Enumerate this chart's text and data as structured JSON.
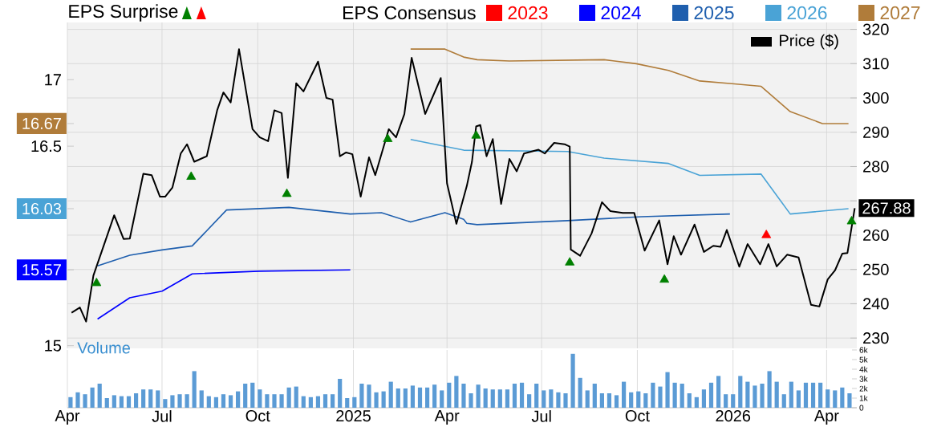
{
  "chart_data": [
    {
      "type": "line",
      "annotations": [
        "EPS Surprise"
      ],
      "legend_title": "EPS Consensus",
      "legend": "top",
      "grid": true,
      "tick_labels": "y",
      "xlim": [
        "2024-04-01",
        "2026-04-30"
      ],
      "xticks": [
        {
          "value": "2024-04-01",
          "label": null
        },
        {
          "value": "2024-07-01",
          "label": null
        },
        {
          "value": "2024-10-01",
          "label": null
        },
        {
          "value": "2025-01-01",
          "label": null
        },
        {
          "value": "2025-04-01",
          "label": null
        },
        {
          "value": "2025-07-01",
          "label": null
        },
        {
          "value": "2025-10-01",
          "label": null
        },
        {
          "value": "2026-01-01",
          "label": null
        },
        {
          "value": "2026-04-01",
          "label": null
        }
      ],
      "ylim": [
        14.98,
        17.43
      ],
      "yticks": [
        15,
        15.57,
        16.03,
        16.5,
        16.67,
        17
      ],
      "y2lim": [
        227,
        322
      ],
      "y2ticks": [
        230,
        240,
        250,
        260,
        {
          "value": 270,
          "label": null
        },
        280,
        290,
        300,
        310,
        320
      ],
      "series": [
        {
          "name": "2023",
          "color": "#ff0000",
          "type": "line",
          "axis": "y"
        },
        {
          "name": "2024",
          "color": "#0000ff",
          "type": "line",
          "axis": "y",
          "x": [
            "2024-04-30",
            "2024-05-31",
            "2024-07-01",
            "2024-07-30",
            "2024-10-02",
            "2024-12-29"
          ],
          "values": [
            15.2,
            15.36,
            15.41,
            15.54,
            15.56,
            15.57
          ]
        },
        {
          "name": "2025",
          "color": "#1f5fae",
          "type": "line",
          "axis": "y",
          "x": [
            "2024-04-30",
            "2024-05-31",
            "2024-07-01",
            "2024-07-30",
            "2024-09-01",
            "2024-10-31",
            "2024-12-29",
            "2025-01-28",
            "2025-02-25",
            "2025-03-30",
            "2025-04-17",
            "2025-04-20",
            "2025-04-30",
            "2025-07-26",
            "2025-10-05",
            "2025-12-29"
          ],
          "values": [
            15.6,
            15.68,
            15.72,
            15.75,
            16.02,
            16.04,
            15.99,
            16.0,
            15.93,
            16.0,
            15.95,
            15.92,
            15.91,
            15.94,
            15.97,
            15.99
          ]
        },
        {
          "name": "2026",
          "color": "#4aa3d6",
          "type": "line",
          "axis": "y",
          "x": [
            "2025-02-25",
            "2025-04-17",
            "2025-07-26",
            "2025-08-30",
            "2025-10-31",
            "2025-11-30",
            "2026-01-28",
            "2026-02-25",
            "2026-04-22"
          ],
          "values": [
            16.55,
            16.47,
            16.46,
            16.41,
            16.37,
            16.28,
            16.29,
            15.99,
            16.03
          ]
        },
        {
          "name": "2027",
          "color": "#b07c3a",
          "type": "line",
          "axis": "y",
          "x": [
            "2025-02-25",
            "2025-03-30",
            "2025-04-17",
            "2025-04-30",
            "2025-05-31",
            "2025-08-30",
            "2025-09-30",
            "2025-10-31",
            "2025-11-30",
            "2025-12-31",
            "2026-01-28",
            "2026-02-25",
            "2026-03-28",
            "2026-04-22"
          ],
          "values": [
            17.23,
            17.23,
            17.17,
            17.15,
            17.14,
            17.15,
            17.12,
            17.07,
            16.99,
            16.97,
            16.95,
            16.76,
            16.67,
            16.67
          ]
        },
        {
          "name": "Price ($)",
          "color": "#000000",
          "type": "line",
          "axis": "y2",
          "x": [
            "2024-04-05",
            "2024-04-13",
            "2024-04-19",
            "2024-04-26",
            "2024-05-16",
            "2024-05-25",
            "2024-05-31",
            "2024-06-13",
            "2024-06-21",
            "2024-06-29",
            "2024-07-04",
            "2024-07-11",
            "2024-07-19",
            "2024-07-25",
            "2024-08-01",
            "2024-08-13",
            "2024-08-23",
            "2024-08-29",
            "2024-09-05",
            "2024-09-13",
            "2024-09-26",
            "2024-10-03",
            "2024-10-11",
            "2024-10-17",
            "2024-10-24",
            "2024-10-30",
            "2024-11-07",
            "2024-11-14",
            "2024-11-28",
            "2024-12-06",
            "2024-12-12",
            "2024-12-19",
            "2024-12-25",
            "2024-12-31",
            "2025-01-08",
            "2025-01-16",
            "2025-01-22",
            "2025-02-04",
            "2025-02-11",
            "2025-02-19",
            "2025-02-26",
            "2025-03-11",
            "2025-03-26",
            "2025-04-01",
            "2025-04-10",
            "2025-04-20",
            "2025-04-25",
            "2025-04-29",
            "2025-05-03",
            "2025-05-09",
            "2025-05-15",
            "2025-05-23",
            "2025-05-31",
            "2025-06-07",
            "2025-06-14",
            "2025-06-28",
            "2025-07-04",
            "2025-07-13",
            "2025-07-23",
            "2025-07-28",
            "2025-07-29",
            "2025-08-07",
            "2025-08-18",
            "2025-08-28",
            "2025-09-05",
            "2025-09-17",
            "2025-09-28",
            "2025-10-08",
            "2025-10-22",
            "2025-10-30",
            "2025-11-05",
            "2025-11-12",
            "2025-11-25",
            "2025-12-04",
            "2025-12-13",
            "2025-12-20",
            "2025-12-26",
            "2026-01-07",
            "2026-01-15",
            "2026-01-27",
            "2026-02-04",
            "2026-02-12",
            "2026-02-22",
            "2026-03-05",
            "2026-03-17",
            "2026-03-25",
            "2026-04-02",
            "2026-04-09",
            "2026-04-16",
            "2026-04-21",
            "2026-04-28"
          ],
          "values": [
            237.4,
            238.9,
            234.8,
            248.2,
            265.8,
            258.9,
            259.0,
            277.9,
            277.5,
            271.2,
            271.2,
            273.9,
            283.8,
            286.5,
            281.4,
            283.0,
            296.4,
            301.6,
            298.7,
            314.2,
            290.9,
            288.5,
            287.4,
            296.4,
            295.6,
            276.7,
            304.3,
            301.9,
            310.6,
            300.0,
            299.5,
            283.0,
            284.1,
            283.6,
            271.2,
            282.7,
            277.5,
            290.9,
            288.5,
            295.3,
            311.7,
            295.3,
            305.8,
            275.1,
            263.3,
            274.3,
            281.4,
            291.7,
            292.1,
            283.0,
            288.0,
            269.1,
            282.2,
            278.6,
            283.8,
            284.9,
            283.8,
            286.9,
            286.5,
            285.8,
            255.8,
            254.0,
            260.5,
            269.6,
            267.0,
            266.5,
            266.5,
            255.5,
            264.3,
            251.5,
            259.7,
            254.3,
            263.1,
            255.1,
            256.9,
            256.6,
            261.5,
            250.8,
            257.4,
            251.5,
            257.4,
            250.9,
            254.3,
            253.5,
            239.7,
            239.2,
            247.1,
            249.7,
            254.6,
            254.8,
            267.88
          ],
          "value_labels": [
            null,
            null,
            null,
            null,
            null,
            null,
            null,
            null,
            null,
            null,
            null,
            null,
            null,
            null,
            null,
            null,
            null,
            null,
            null,
            null,
            null,
            null,
            null,
            null,
            null,
            null,
            null,
            null,
            null,
            null,
            null,
            null,
            null,
            null,
            null,
            null,
            null,
            null,
            null,
            null,
            null,
            null,
            null,
            null,
            null,
            null,
            null,
            null,
            null,
            null,
            null,
            null,
            null,
            null,
            null,
            null,
            null,
            null,
            null,
            null,
            null,
            null,
            null,
            null,
            null,
            null,
            null,
            null,
            null,
            null,
            null,
            null,
            null,
            null,
            null,
            null,
            null,
            null,
            null,
            null,
            null,
            null,
            null,
            null,
            null,
            null,
            null,
            null,
            null,
            null,
            "267.88"
          ]
        },
        {
          "color": "#008000",
          "type": "scatter",
          "axis": "y2",
          "marker": "triangle",
          "x": [
            "2024-04-29",
            "2024-07-29",
            "2024-10-29",
            "2025-02-03",
            "2025-04-29",
            "2025-07-28",
            "2025-10-27",
            "2026-04-25"
          ],
          "values": [
            246,
            277,
            272,
            288,
            289,
            252,
            247,
            264
          ]
        },
        {
          "color": "#ff0000",
          "type": "scatter",
          "axis": "y2",
          "marker": "triangle",
          "x": [
            "2026-02-02"
          ],
          "values": [
            260
          ]
        }
      ]
    },
    {
      "type": "bar",
      "title": "Volume",
      "color": "#5b9bd5",
      "grid": "x",
      "xlim": [
        "2024-04-01",
        "2026-04-30"
      ],
      "xticks": [
        {
          "value": "2024-04-01",
          "label": "Apr"
        },
        {
          "value": "2024-07-01",
          "label": "Jul"
        },
        {
          "value": "2024-10-01",
          "label": "Oct"
        },
        {
          "value": "2025-01-01",
          "label": "2025"
        },
        {
          "value": "2025-04-01",
          "label": "Apr"
        },
        {
          "value": "2025-07-01",
          "label": "Jul"
        },
        {
          "value": "2025-10-01",
          "label": "Oct"
        },
        {
          "value": "2026-01-01",
          "label": "2026"
        },
        {
          "value": "2026-04-01",
          "label": "Apr"
        }
      ],
      "ylim": [
        0,
        6000
      ],
      "yticks": [
        0,
        {
          "value": 1000,
          "label": "1k"
        },
        {
          "value": 2000,
          "label": "2k"
        },
        {
          "value": 3000,
          "label": "3k"
        },
        {
          "value": 4000,
          "label": "4k"
        },
        {
          "value": 5000,
          "label": "5k"
        },
        {
          "value": 6000,
          "label": "6k"
        }
      ],
      "x": [
        "2024-04-04",
        "2024-04-11",
        "2024-04-18",
        "2024-04-25",
        "2024-05-02",
        "2024-05-09",
        "2024-05-16",
        "2024-05-23",
        "2024-05-30",
        "2024-06-06",
        "2024-06-13",
        "2024-06-20",
        "2024-06-27",
        "2024-07-04",
        "2024-07-11",
        "2024-07-18",
        "2024-07-25",
        "2024-08-01",
        "2024-08-08",
        "2024-08-15",
        "2024-08-22",
        "2024-08-29",
        "2024-09-05",
        "2024-09-12",
        "2024-09-19",
        "2024-09-26",
        "2024-10-03",
        "2024-10-10",
        "2024-10-17",
        "2024-10-24",
        "2024-10-31",
        "2024-11-07",
        "2024-11-14",
        "2024-11-21",
        "2024-11-28",
        "2024-12-05",
        "2024-12-12",
        "2024-12-19",
        "2024-12-26",
        "2025-01-02",
        "2025-01-09",
        "2025-01-16",
        "2025-01-23",
        "2025-01-30",
        "2025-02-06",
        "2025-02-13",
        "2025-02-20",
        "2025-02-27",
        "2025-03-06",
        "2025-03-13",
        "2025-03-20",
        "2025-03-27",
        "2025-04-03",
        "2025-04-10",
        "2025-04-17",
        "2025-04-24",
        "2025-05-01",
        "2025-05-08",
        "2025-05-15",
        "2025-05-22",
        "2025-05-29",
        "2025-06-05",
        "2025-06-12",
        "2025-06-19",
        "2025-06-26",
        "2025-07-03",
        "2025-07-10",
        "2025-07-17",
        "2025-07-24",
        "2025-07-31",
        "2025-08-07",
        "2025-08-14",
        "2025-08-21",
        "2025-08-28",
        "2025-09-04",
        "2025-09-11",
        "2025-09-18",
        "2025-09-25",
        "2025-10-02",
        "2025-10-09",
        "2025-10-16",
        "2025-10-23",
        "2025-10-30",
        "2025-11-06",
        "2025-11-13",
        "2025-11-20",
        "2025-11-27",
        "2025-12-04",
        "2025-12-11",
        "2025-12-18",
        "2025-12-25",
        "2026-01-01",
        "2026-01-08",
        "2026-01-15",
        "2026-01-22",
        "2026-01-29",
        "2026-02-05",
        "2026-02-12",
        "2026-02-19",
        "2026-02-26",
        "2026-03-05",
        "2026-03-12",
        "2026-03-19",
        "2026-03-26",
        "2026-04-02",
        "2026-04-09",
        "2026-04-16",
        "2026-04-23"
      ],
      "values": [
        1100,
        1600,
        1400,
        2100,
        2500,
        1000,
        1300,
        1200,
        1200,
        1500,
        1900,
        1900,
        1800,
        900,
        1300,
        1400,
        1400,
        3800,
        1800,
        1200,
        1100,
        1400,
        1300,
        1700,
        2500,
        2600,
        1900,
        1400,
        1400,
        1400,
        2100,
        2200,
        1200,
        1100,
        1200,
        1400,
        1400,
        3000,
        1000,
        1100,
        2500,
        2400,
        1600,
        1700,
        2700,
        2000,
        2000,
        2300,
        2100,
        2100,
        2400,
        1800,
        2600,
        3300,
        2500,
        1500,
        2400,
        2000,
        1900,
        1900,
        1900,
        2500,
        2600,
        1400,
        2500,
        1800,
        1900,
        1600,
        1500,
        5600,
        3100,
        1800,
        2500,
        1500,
        1500,
        1300,
        2700,
        1600,
        1700,
        1500,
        2600,
        2200,
        3700,
        2600,
        2500,
        1500,
        1100,
        1900,
        2600,
        3300,
        1400,
        1400,
        3300,
        2700,
        2300,
        2500,
        3800,
        2700,
        1400,
        2700,
        1800,
        2600,
        2600,
        2600,
        1900,
        1800,
        2100,
        1500
      ]
    }
  ]
}
